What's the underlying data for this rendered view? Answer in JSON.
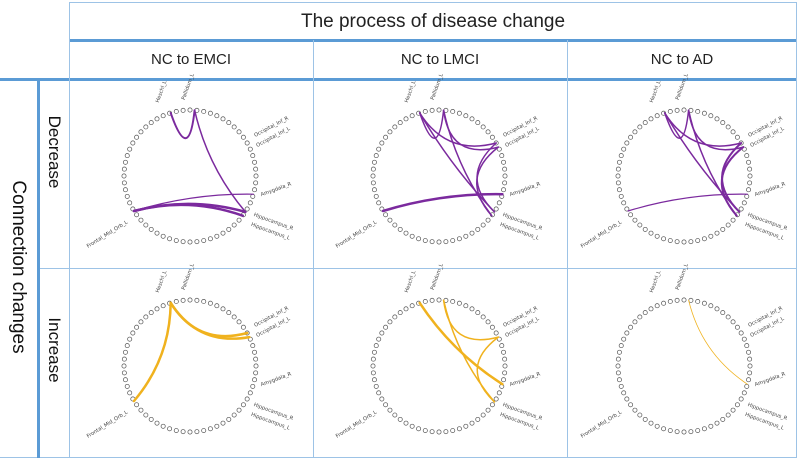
{
  "header": {
    "title": "The process of disease change"
  },
  "columns": [
    "NC to EMCI",
    "NC to LMCI",
    "NC to AD"
  ],
  "row_group_label": "Connection changes",
  "rows": [
    "Decrease",
    "Increase"
  ],
  "node_labels": {
    "pallidum_l": "Pallidum_L",
    "heschl_l": "Heschl_L",
    "occipital_inf_r": "Occipital_Inf_R",
    "occipital_inf_l": "Occipital_Inf_L",
    "amygdala_r": "Amygdala_R",
    "hippocampus_r": "Hippocampus_R",
    "hippocampus_l": "Hippocampus_L",
    "frontal_mid_orb_l": "Frontal_Mid_Orb_L"
  },
  "colors": {
    "decrease": "#7b2a9e",
    "increase": "#f0b21e",
    "grid": "#9dc3e6",
    "accent": "#5b9bd5"
  },
  "panels": [
    {
      "row": "Decrease",
      "column": "NC to EMCI",
      "edges": [
        {
          "from": "heschl_l",
          "to": "pallidum_l",
          "width": 2
        },
        {
          "from": "pallidum_l",
          "to": "hippocampus_r",
          "width": 1.5
        },
        {
          "from": "frontal_mid_orb_l",
          "to": "hippocampus_r",
          "width": 2.5
        },
        {
          "from": "frontal_mid_orb_l",
          "to": "hippocampus_l",
          "width": 2.5
        },
        {
          "from": "frontal_mid_orb_l",
          "to": "amygdala_r",
          "width": 1.2
        }
      ]
    },
    {
      "row": "Decrease",
      "column": "NC to LMCI",
      "edges": [
        {
          "from": "heschl_l",
          "to": "pallidum_l",
          "width": 1.5
        },
        {
          "from": "heschl_l",
          "to": "occipital_inf_r",
          "width": 1.5
        },
        {
          "from": "pallidum_l",
          "to": "occipital_inf_l",
          "width": 1.5
        },
        {
          "from": "heschl_l",
          "to": "hippocampus_r",
          "width": 1.5
        },
        {
          "from": "pallidum_l",
          "to": "hippocampus_l",
          "width": 1.5
        },
        {
          "from": "occipital_inf_r",
          "to": "hippocampus_r",
          "width": 1.5
        },
        {
          "from": "occipital_inf_l",
          "to": "hippocampus_l",
          "width": 1.5
        },
        {
          "from": "frontal_mid_orb_l",
          "to": "amygdala_r",
          "width": 2.5
        }
      ]
    },
    {
      "row": "Decrease",
      "column": "NC to AD",
      "edges": [
        {
          "from": "heschl_l",
          "to": "pallidum_l",
          "width": 1.5
        },
        {
          "from": "heschl_l",
          "to": "occipital_inf_r",
          "width": 1.5
        },
        {
          "from": "pallidum_l",
          "to": "occipital_inf_l",
          "width": 1.5
        },
        {
          "from": "heschl_l",
          "to": "hippocampus_r",
          "width": 1.5
        },
        {
          "from": "pallidum_l",
          "to": "hippocampus_l",
          "width": 1.5
        },
        {
          "from": "occipital_inf_r",
          "to": "hippocampus_r",
          "width": 2
        },
        {
          "from": "occipital_inf_l",
          "to": "hippocampus_l",
          "width": 2
        },
        {
          "from": "frontal_mid_orb_l",
          "to": "amygdala_r",
          "width": 1.2
        }
      ]
    },
    {
      "row": "Increase",
      "column": "NC to EMCI",
      "edges": [
        {
          "from": "heschl_l",
          "to": "occipital_inf_r",
          "width": 2.5
        },
        {
          "from": "heschl_l",
          "to": "occipital_inf_l",
          "width": 2.5
        },
        {
          "from": "heschl_l",
          "to": "frontal_mid_orb_l",
          "width": 2.5
        }
      ]
    },
    {
      "row": "Increase",
      "column": "NC to LMCI",
      "edges": [
        {
          "from": "heschl_l",
          "to": "amygdala_r",
          "width": 2.5
        },
        {
          "from": "pallidum_l",
          "to": "hippocampus_r",
          "width": 1.5
        },
        {
          "from": "pallidum_l",
          "to": "occipital_inf_l",
          "width": 1.5
        },
        {
          "from": "occipital_inf_l",
          "to": "hippocampus_r",
          "width": 1.5
        }
      ]
    },
    {
      "row": "Increase",
      "column": "NC to AD",
      "edges": [
        {
          "from": "pallidum_l",
          "to": "amygdala_r",
          "width": 0.8
        }
      ]
    }
  ]
}
